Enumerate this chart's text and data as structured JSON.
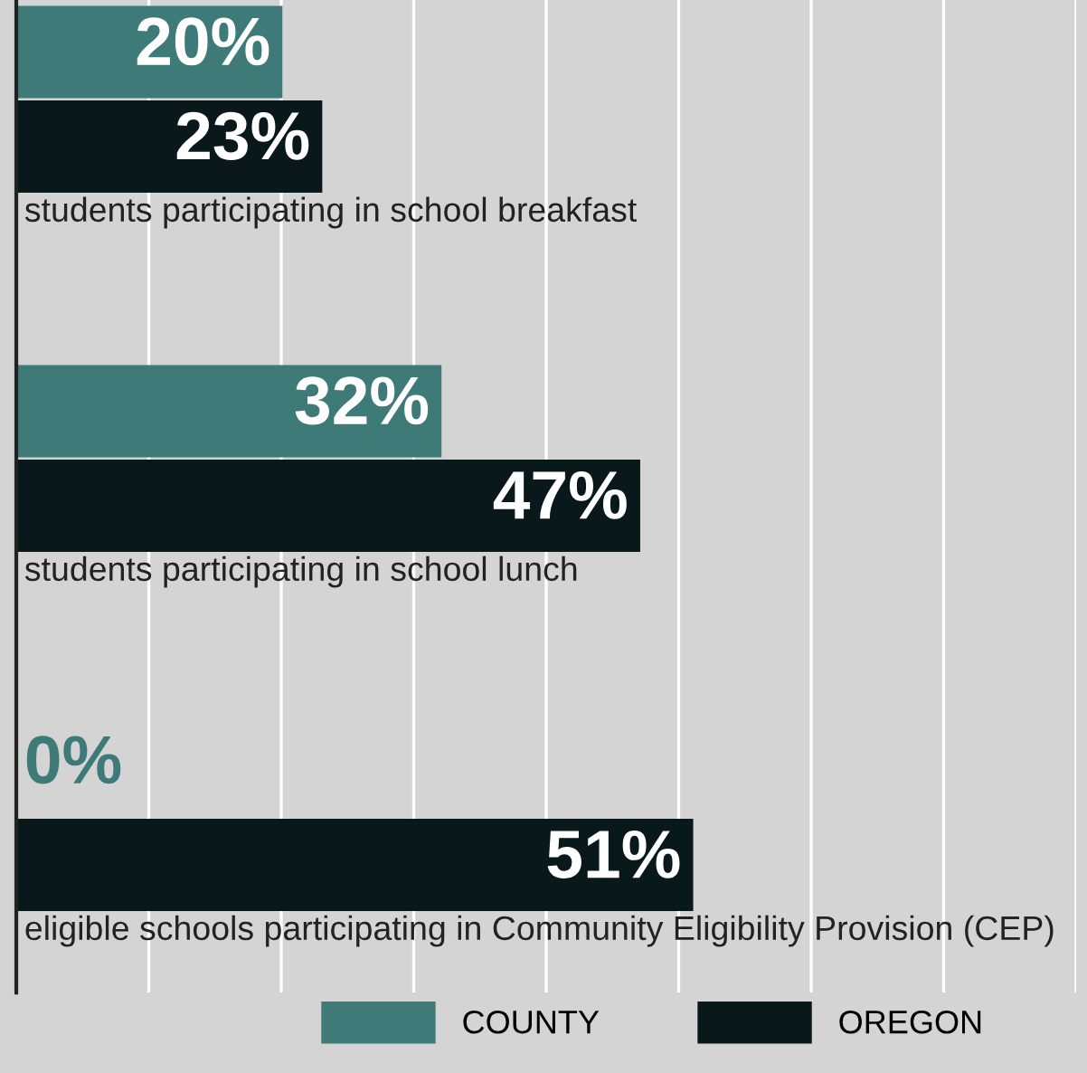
{
  "chart_data": {
    "type": "bar",
    "orientation": "horizontal",
    "categories": [
      "students participating in school breakfast",
      "students participating in school lunch",
      "eligible schools participating in Community Eligibility Provision (CEP)"
    ],
    "series": [
      {
        "name": "COUNTY",
        "color": "#3d7a78",
        "values": [
          20,
          32,
          0
        ],
        "value_labels": [
          "20%",
          "32%",
          "0%"
        ]
      },
      {
        "name": "OREGON",
        "color": "#09191b",
        "values": [
          23,
          47,
          51
        ],
        "value_labels": [
          "23%",
          "47%",
          "51%"
        ]
      }
    ],
    "xlim": [
      0,
      80
    ],
    "xticks": [
      {
        "value": 10,
        "label": null
      },
      {
        "value": 20,
        "label": null
      },
      {
        "value": 30,
        "label": null
      },
      {
        "value": 40,
        "label": null
      },
      {
        "value": 50,
        "label": null
      },
      {
        "value": 60,
        "label": null
      },
      {
        "value": 70,
        "label": null
      },
      {
        "value": 80,
        "label": null
      }
    ],
    "grid": "x",
    "legend": "bottom"
  }
}
